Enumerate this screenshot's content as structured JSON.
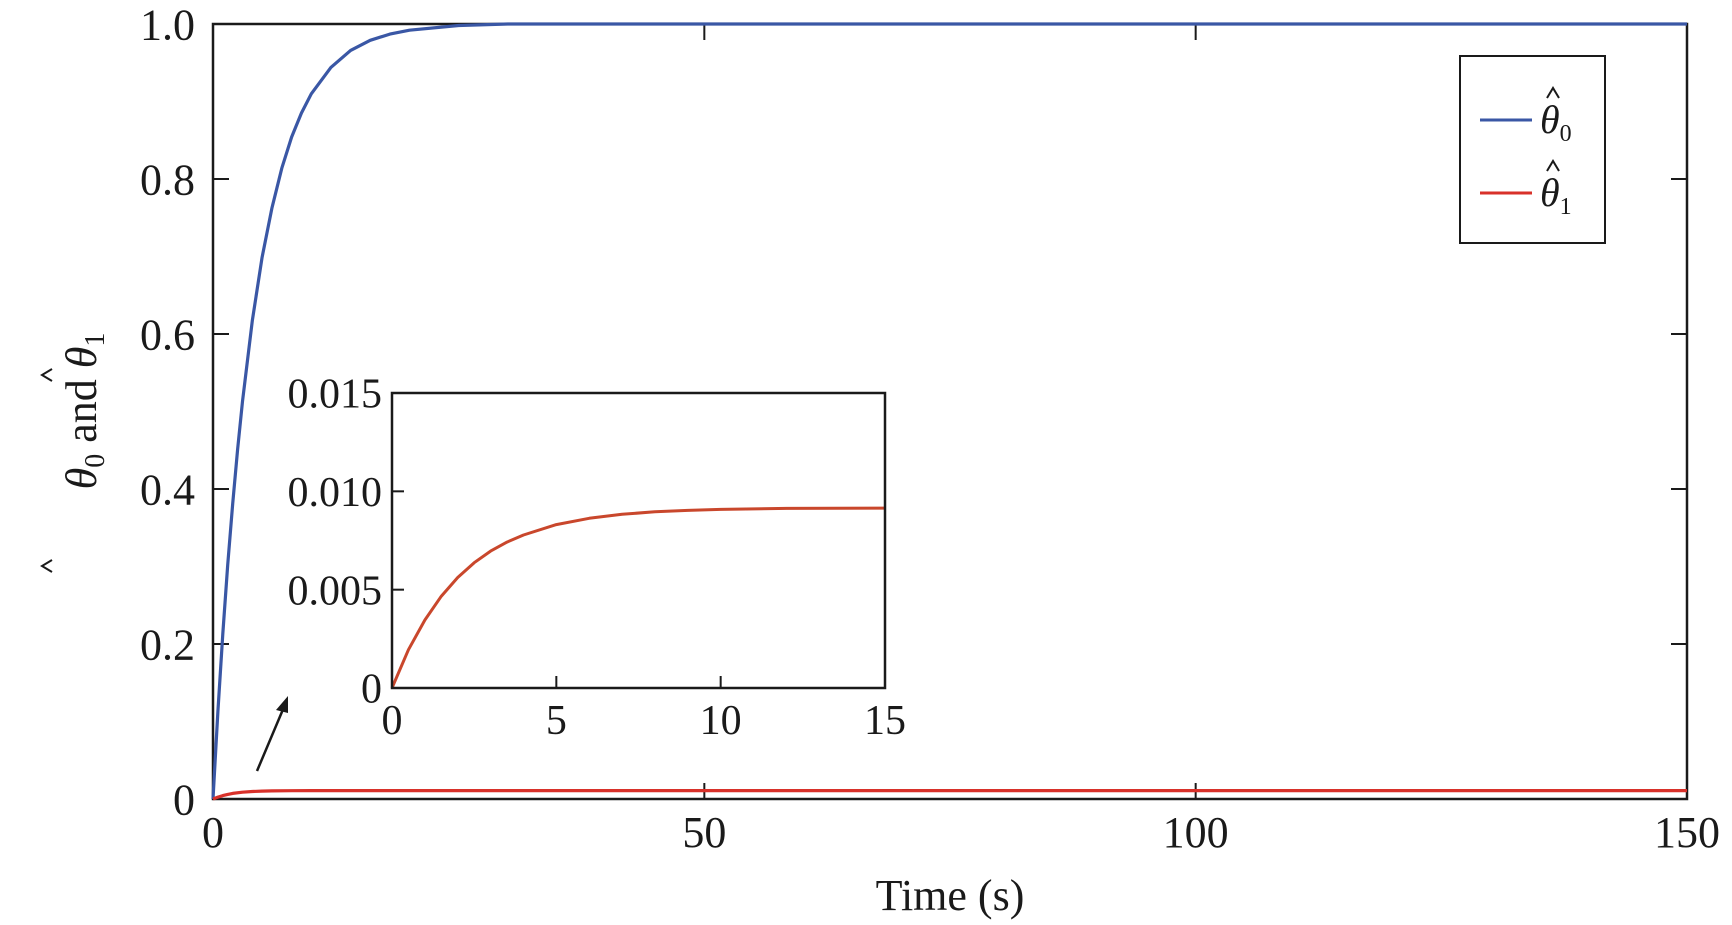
{
  "chart_data": [
    {
      "type": "line",
      "xlabel": "Time (s)",
      "ylabel": {
        "theta0": "θ",
        "sub0": "0",
        "and": " and ",
        "theta1": "θ",
        "sub1": "1"
      },
      "xlim": [
        0,
        150
      ],
      "ylim": [
        0,
        1.0
      ],
      "xticks": [
        "0",
        "50",
        "100",
        "150"
      ],
      "yticks": [
        "0",
        "0.2",
        "0.4",
        "0.6",
        "0.8",
        "1.0"
      ],
      "grid": false,
      "legend_position": "top-right",
      "series": [
        {
          "name": "θ̂0",
          "legend_symbol": "θ",
          "legend_sub": "0",
          "color": "#3a57a5",
          "x": [
            0,
            0.5,
            1,
            1.5,
            2,
            2.5,
            3,
            4,
            5,
            6,
            7,
            8,
            9,
            10,
            12,
            14,
            16,
            18,
            20,
            25,
            30,
            40,
            60,
            80,
            100,
            120,
            150
          ],
          "y": [
            0,
            0.113,
            0.213,
            0.302,
            0.381,
            0.451,
            0.513,
            0.617,
            0.699,
            0.763,
            0.814,
            0.854,
            0.885,
            0.91,
            0.944,
            0.966,
            0.979,
            0.987,
            0.992,
            0.998,
            1.0,
            1.0,
            1.0,
            1.0,
            1.0,
            1.0,
            1.0
          ]
        },
        {
          "name": "θ̂1",
          "legend_symbol": "θ",
          "legend_sub": "1",
          "color": "#d8312a",
          "x": [
            0,
            0.5,
            1,
            1.5,
            2,
            3,
            4,
            5,
            6,
            8,
            10,
            15,
            20,
            30,
            50,
            100,
            150
          ],
          "y": [
            0,
            0.0025,
            0.0044,
            0.006,
            0.0072,
            0.0088,
            0.0097,
            0.0102,
            0.0105,
            0.0107,
            0.0108,
            0.0108,
            0.0108,
            0.0108,
            0.0108,
            0.0108,
            0.0108
          ]
        }
      ]
    },
    {
      "type": "line",
      "role": "inset",
      "xlim": [
        0,
        15
      ],
      "ylim": [
        0,
        0.015
      ],
      "xticks": [
        "0",
        "5",
        "10",
        "15"
      ],
      "yticks": [
        "0",
        "0.005",
        "0.010",
        "0.015"
      ],
      "grid": false,
      "series": [
        {
          "color": "#c9472c",
          "x": [
            0,
            0.5,
            1,
            1.5,
            2,
            2.5,
            3,
            3.5,
            4,
            5,
            6,
            7,
            8,
            9,
            10,
            12,
            15
          ],
          "y": [
            0,
            0.00194,
            0.00346,
            0.00467,
            0.00562,
            0.00637,
            0.00696,
            0.00742,
            0.00778,
            0.00831,
            0.00863,
            0.00883,
            0.00896,
            0.00903,
            0.00908,
            0.00913,
            0.00915
          ]
        }
      ]
    }
  ]
}
